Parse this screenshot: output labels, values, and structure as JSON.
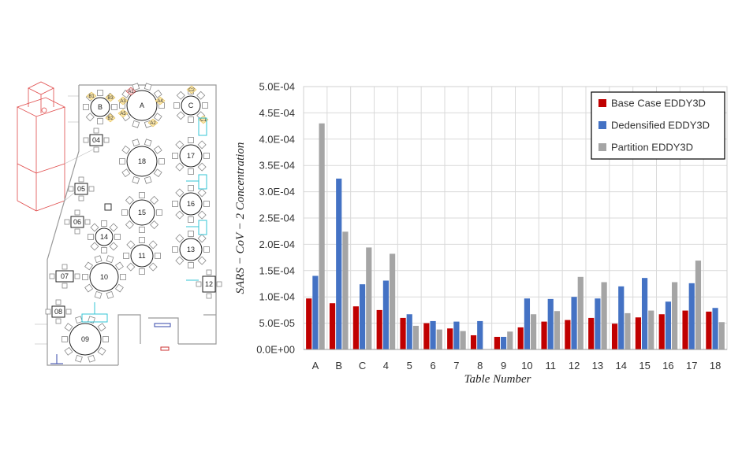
{
  "floor_plan": {
    "circle_tables": [
      {
        "label": "A"
      },
      {
        "label": "B"
      },
      {
        "label": "C"
      },
      {
        "label": "18"
      },
      {
        "label": "17"
      },
      {
        "label": "16"
      },
      {
        "label": "15"
      },
      {
        "label": "14"
      },
      {
        "label": "13"
      },
      {
        "label": "11"
      },
      {
        "label": "10"
      },
      {
        "label": "09"
      }
    ],
    "square_tables": [
      {
        "label": "04"
      },
      {
        "label": "05"
      },
      {
        "label": "06"
      },
      {
        "label": "07"
      },
      {
        "label": "08"
      },
      {
        "label": "12"
      }
    ],
    "seat_labels": [
      "B1",
      "B3",
      "A1",
      "A3",
      "A5",
      "A4",
      "A2",
      "B2",
      "C2",
      "C1"
    ]
  },
  "chart_data": {
    "type": "bar",
    "categories": [
      "A",
      "B",
      "C",
      "4",
      "5",
      "6",
      "7",
      "8",
      "9",
      "10",
      "11",
      "12",
      "13",
      "14",
      "15",
      "16",
      "17",
      "18"
    ],
    "series": [
      {
        "name": "Base Case EDDY3D",
        "color": "#c00000",
        "values": [
          9.7e-05,
          8.8e-05,
          8.2e-05,
          7.5e-05,
          6e-05,
          5e-05,
          4e-05,
          2.7e-05,
          2.4e-05,
          4.2e-05,
          5.3e-05,
          5.6e-05,
          6e-05,
          4.9e-05,
          6.1e-05,
          6.7e-05,
          7.4e-05,
          7.2e-05
        ]
      },
      {
        "name": "Dedensified EDDY3D",
        "color": "#4472c4",
        "values": [
          0.00014,
          0.000325,
          0.000124,
          0.000131,
          6.7e-05,
          5.4e-05,
          5.3e-05,
          5.4e-05,
          2.4e-05,
          9.7e-05,
          9.6e-05,
          0.0001,
          9.7e-05,
          0.00012,
          0.000136,
          9.1e-05,
          0.000126,
          7.9e-05
        ]
      },
      {
        "name": "Partition EDDY3D",
        "color": "#a5a5a5",
        "values": [
          0.00043,
          0.000224,
          0.000194,
          0.000182,
          4.5e-05,
          3.8e-05,
          3.5e-05,
          0,
          3.4e-05,
          6.7e-05,
          7.3e-05,
          0.000138,
          0.000128,
          6.9e-05,
          7.4e-05,
          0.000128,
          0.000169,
          5.2e-05
        ]
      }
    ],
    "ylim": [
      0,
      0.0005
    ],
    "yticks": [
      "0.0E+00",
      "5.0E-05",
      "1.0E-04",
      "1.5E-04",
      "2.0E-04",
      "2.5E-04",
      "3.0E-04",
      "3.5E-04",
      "4.0E-04",
      "4.5E-04",
      "5.0E-04"
    ],
    "xlabel": "Table Number",
    "ylabel": "SARS − CoV − 2 Concentration",
    "grid": true,
    "legend_position": "top-right"
  }
}
